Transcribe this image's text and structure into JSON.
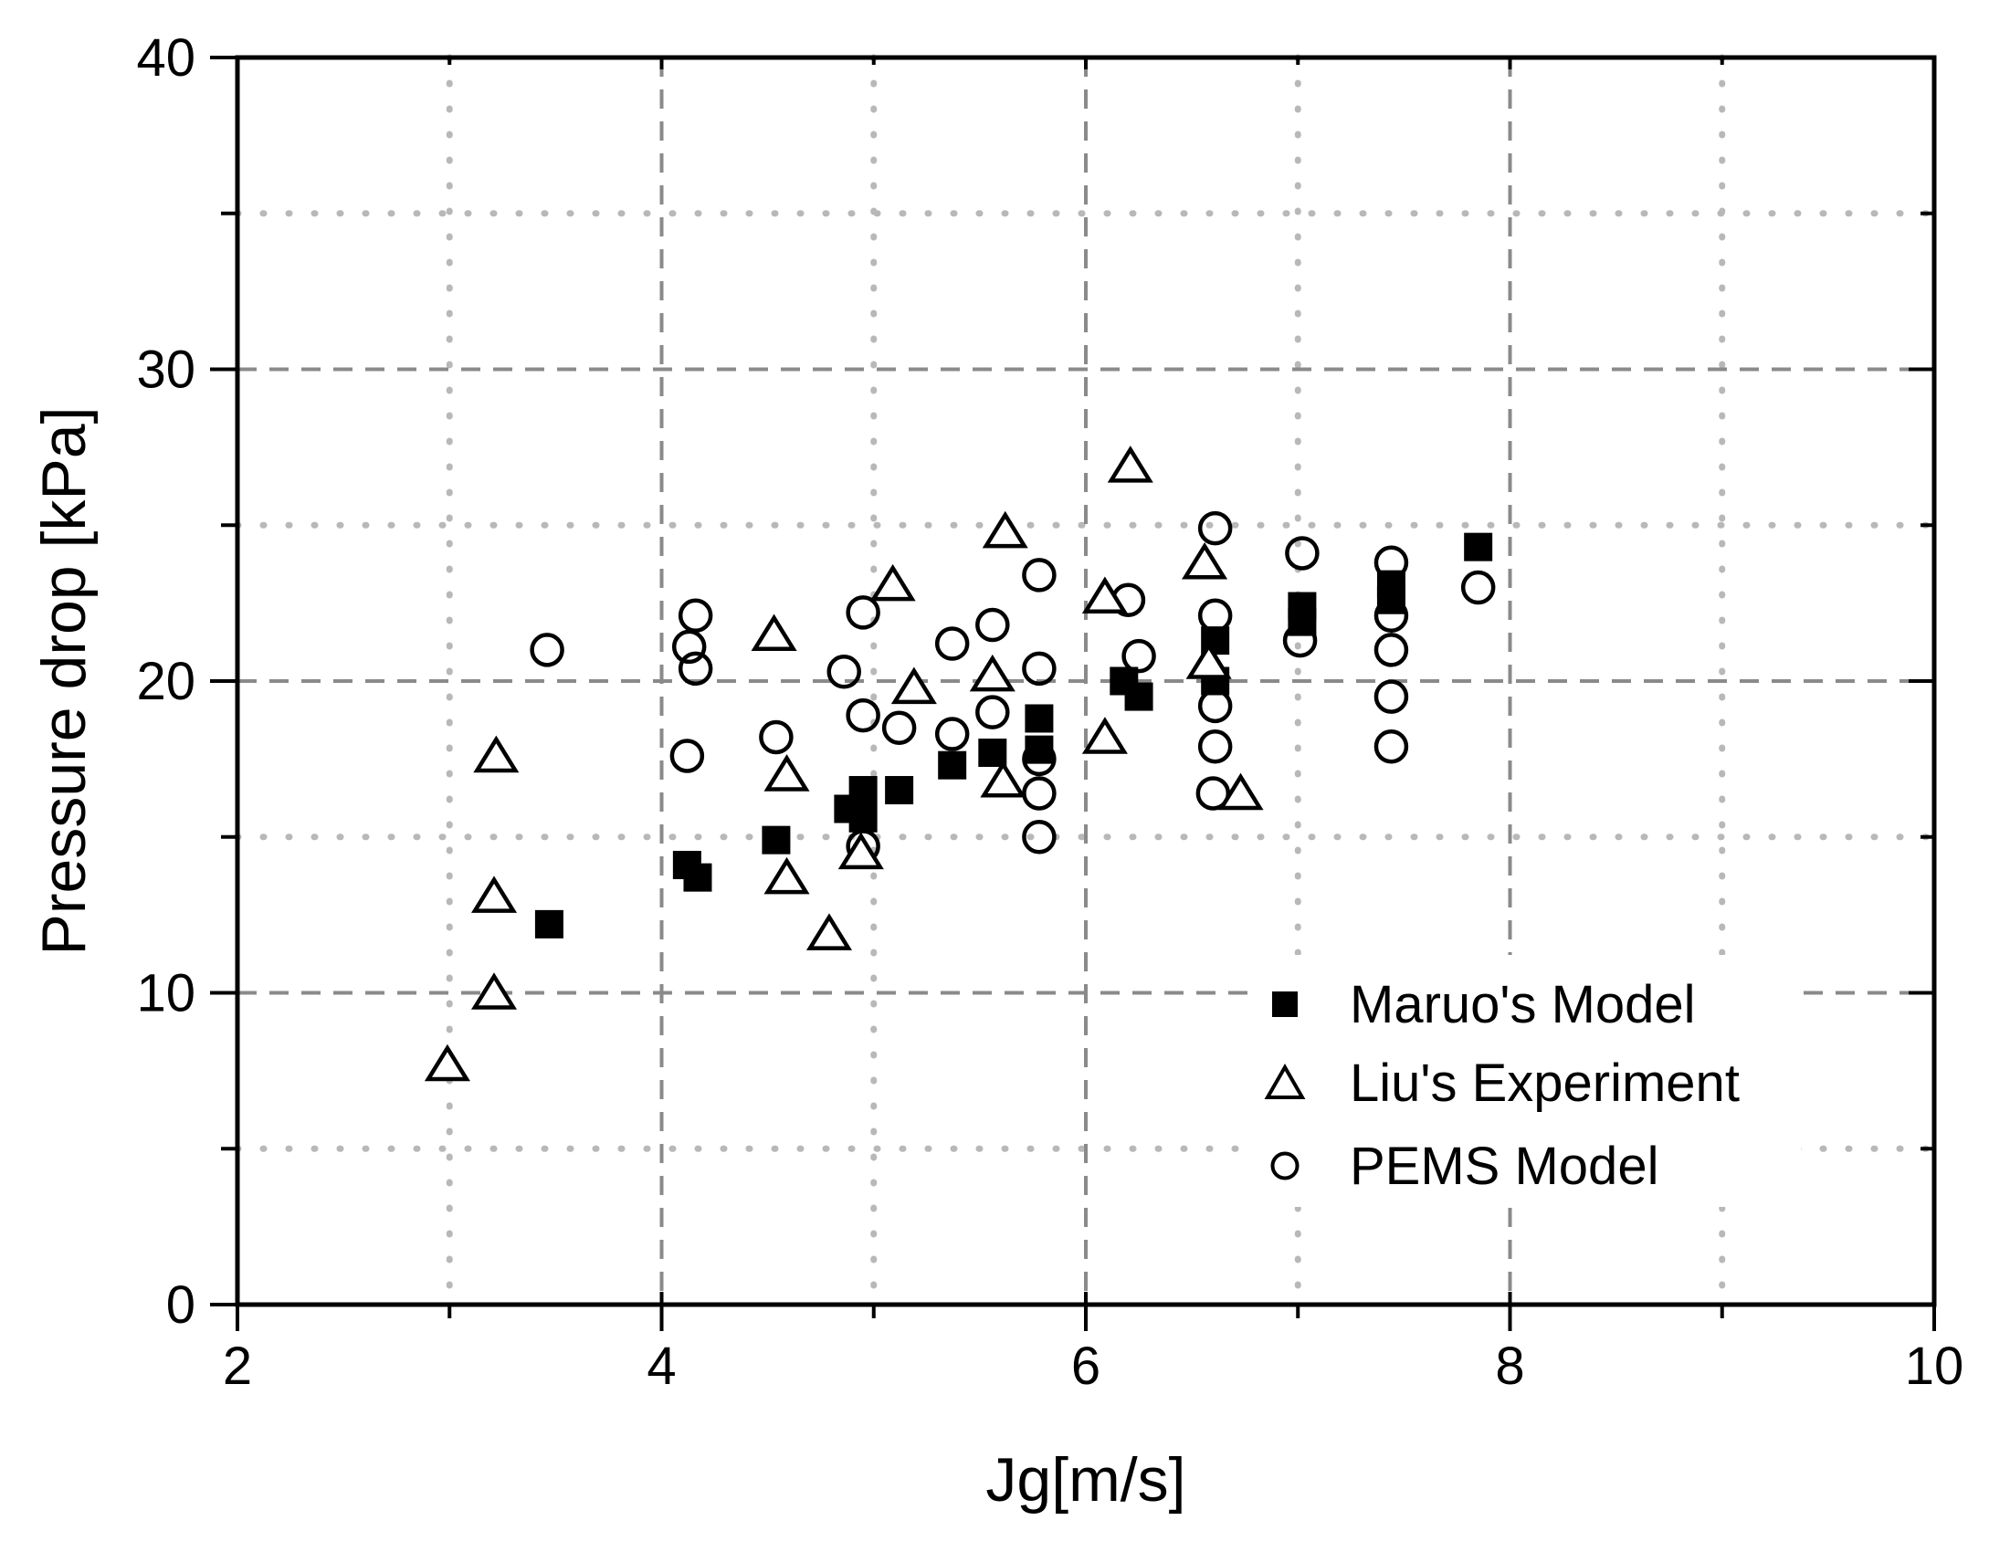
{
  "chart_data": {
    "type": "scatter",
    "title": "",
    "xlabel": "Jg[m/s]",
    "ylabel": "Pressure drop [kPa]",
    "xlim": [
      2,
      10
    ],
    "ylim": [
      0,
      40
    ],
    "x_major_ticks": [
      2,
      4,
      6,
      8,
      10
    ],
    "x_minor_ticks": [
      3,
      5,
      7,
      9
    ],
    "y_major_ticks": [
      0,
      10,
      20,
      30,
      40
    ],
    "y_minor_ticks": [
      5,
      15,
      25,
      35
    ],
    "x_tick_labels": [
      "2",
      "4",
      "6",
      "8",
      "10"
    ],
    "y_tick_labels": [
      "0",
      "10",
      "20",
      "30",
      "40"
    ],
    "grid": {
      "major_style": "dashed",
      "minor_style": "dotted",
      "grid_on": true
    },
    "legend_position": "inside-lower-right",
    "series": [
      {
        "name": "Maruo's Model",
        "marker": "filled-square",
        "points": [
          [
            3.47,
            12.2
          ],
          [
            4.12,
            14.1
          ],
          [
            4.17,
            13.7
          ],
          [
            4.54,
            14.9
          ],
          [
            4.88,
            15.9
          ],
          [
            4.95,
            16.5
          ],
          [
            4.95,
            15.6
          ],
          [
            5.12,
            16.5
          ],
          [
            5.37,
            17.3
          ],
          [
            5.56,
            17.7
          ],
          [
            5.78,
            18.8
          ],
          [
            5.78,
            17.8
          ],
          [
            6.18,
            20.0
          ],
          [
            6.25,
            19.5
          ],
          [
            6.61,
            21.3
          ],
          [
            6.61,
            20.0
          ],
          [
            7.02,
            22.4
          ],
          [
            7.02,
            21.9
          ],
          [
            7.44,
            23.1
          ],
          [
            7.44,
            22.6
          ],
          [
            7.85,
            24.3
          ]
        ]
      },
      {
        "name": "Liu's Experiment",
        "marker": "open-triangle",
        "points": [
          [
            2.99,
            7.7
          ],
          [
            3.21,
            10.0
          ],
          [
            3.21,
            13.1
          ],
          [
            3.22,
            17.6
          ],
          [
            4.53,
            21.5
          ],
          [
            4.59,
            17.0
          ],
          [
            4.59,
            13.7
          ],
          [
            4.79,
            11.9
          ],
          [
            4.94,
            14.5
          ],
          [
            5.09,
            23.1
          ],
          [
            5.19,
            19.8
          ],
          [
            5.56,
            20.2
          ],
          [
            5.61,
            16.8
          ],
          [
            5.62,
            24.8
          ],
          [
            6.09,
            22.7
          ],
          [
            6.09,
            18.2
          ],
          [
            6.21,
            26.9
          ],
          [
            6.56,
            23.8
          ],
          [
            6.58,
            20.6
          ],
          [
            6.73,
            16.4
          ]
        ]
      },
      {
        "name": "PEMS Model",
        "marker": "open-circle",
        "points": [
          [
            3.46,
            21.0
          ],
          [
            4.12,
            17.6
          ],
          [
            4.13,
            21.1
          ],
          [
            4.16,
            22.1
          ],
          [
            4.16,
            20.4
          ],
          [
            4.54,
            18.2
          ],
          [
            4.86,
            20.3
          ],
          [
            4.95,
            22.2
          ],
          [
            4.95,
            18.9
          ],
          [
            4.95,
            14.7
          ],
          [
            5.12,
            18.5
          ],
          [
            5.37,
            21.2
          ],
          [
            5.37,
            18.3
          ],
          [
            5.56,
            21.8
          ],
          [
            5.56,
            19.0
          ],
          [
            5.78,
            23.4
          ],
          [
            5.78,
            20.4
          ],
          [
            5.78,
            17.5
          ],
          [
            5.78,
            16.4
          ],
          [
            5.78,
            15.0
          ],
          [
            6.2,
            22.6
          ],
          [
            6.25,
            20.8
          ],
          [
            6.61,
            24.9
          ],
          [
            6.61,
            22.1
          ],
          [
            6.61,
            19.2
          ],
          [
            6.61,
            17.9
          ],
          [
            6.6,
            16.4
          ],
          [
            7.02,
            24.1
          ],
          [
            7.01,
            21.3
          ],
          [
            7.44,
            23.8
          ],
          [
            7.44,
            22.1
          ],
          [
            7.44,
            21.0
          ],
          [
            7.44,
            19.5
          ],
          [
            7.44,
            17.9
          ],
          [
            7.85,
            23.0
          ]
        ]
      }
    ]
  },
  "legend": {
    "items": [
      {
        "label": "Maruo's Model",
        "marker": "filled-square"
      },
      {
        "label": "Liu's Experiment",
        "marker": "open-triangle"
      },
      {
        "label": "PEMS Model",
        "marker": "open-circle"
      }
    ]
  },
  "colors": {
    "marker": "#000000",
    "axis": "#000000",
    "major_grid": "#8a8a8a",
    "minor_grid": "#b8b8b8",
    "background": "#ffffff"
  }
}
